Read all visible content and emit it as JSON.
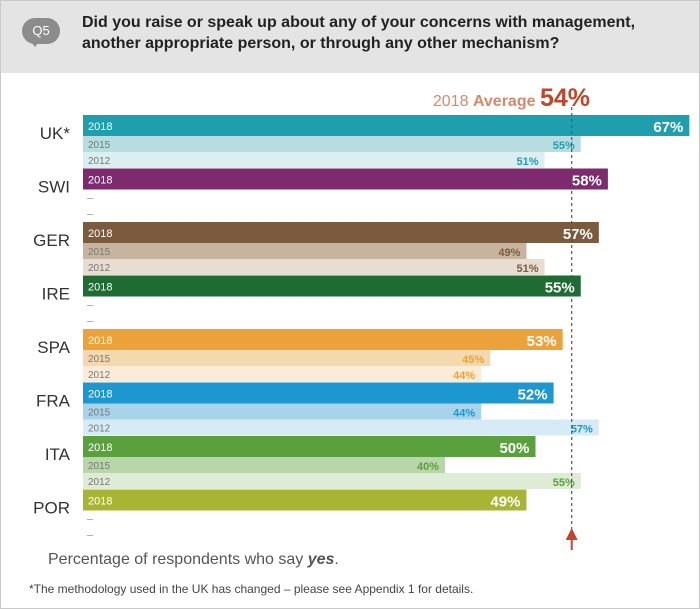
{
  "question_badge": "Q5",
  "question": "Did you raise or speak up about any of your concerns with management, another appropriate person, or through any other mechanism?",
  "average": {
    "year": "2018",
    "word": "Average",
    "value": "54%"
  },
  "subtitle_pre": "Percentage of respondents who say ",
  "subtitle_em": "yes",
  "subtitle_post": ".",
  "footnote": "*The methodology used in the UK has changed – please see Appendix 1 for details.",
  "chart_data": {
    "type": "bar",
    "orientation": "horizontal",
    "average_line": 54,
    "xlim": [
      0,
      67
    ],
    "missing_marker": "–",
    "categories": [
      "UK*",
      "SWI",
      "GER",
      "IRE",
      "SPA",
      "FRA",
      "ITA",
      "POR"
    ],
    "series_names": [
      "2018",
      "2015",
      "2012"
    ],
    "groups": [
      {
        "country": "UK*",
        "color": "#1f9fae",
        "light": "#b7dde0",
        "lighter": "#dbeef0",
        "values": [
          67,
          55,
          51
        ],
        "labels": [
          "67%",
          "55%",
          "51%"
        ]
      },
      {
        "country": "SWI",
        "color": "#7e2a6e",
        "light": "#c89abd",
        "lighter": "#e6d1e0",
        "values": [
          58,
          null,
          null
        ],
        "labels": [
          "58%",
          "",
          ""
        ]
      },
      {
        "country": "GER",
        "color": "#7b5a3e",
        "light": "#c7b49e",
        "lighter": "#e8ddd1",
        "values": [
          57,
          49,
          51
        ],
        "labels": [
          "57%",
          "49%",
          "51%"
        ]
      },
      {
        "country": "IRE",
        "color": "#1f6b34",
        "light": "#9cc2a5",
        "lighter": "#d2e6d6",
        "values": [
          55,
          null,
          null
        ],
        "labels": [
          "55%",
          "",
          ""
        ]
      },
      {
        "country": "SPA",
        "color": "#eba23a",
        "light": "#f5d9ae",
        "lighter": "#faecd6",
        "values": [
          53,
          45,
          44
        ],
        "labels": [
          "53%",
          "45%",
          "44%"
        ]
      },
      {
        "country": "FRA",
        "color": "#1c97cf",
        "light": "#a9d3ea",
        "lighter": "#d6ebf6",
        "values": [
          52,
          44,
          57
        ],
        "labels": [
          "52%",
          "44%",
          "57%"
        ]
      },
      {
        "country": "ITA",
        "color": "#5aa03c",
        "light": "#b8d6a9",
        "lighter": "#deecd6",
        "values": [
          50,
          40,
          55
        ],
        "labels": [
          "50%",
          "40%",
          "55%"
        ]
      },
      {
        "country": "POR",
        "color": "#a8b434",
        "light": "#d8dea3",
        "lighter": "#edf0d3",
        "values": [
          49,
          null,
          null
        ],
        "labels": [
          "49%",
          "",
          ""
        ]
      }
    ]
  }
}
